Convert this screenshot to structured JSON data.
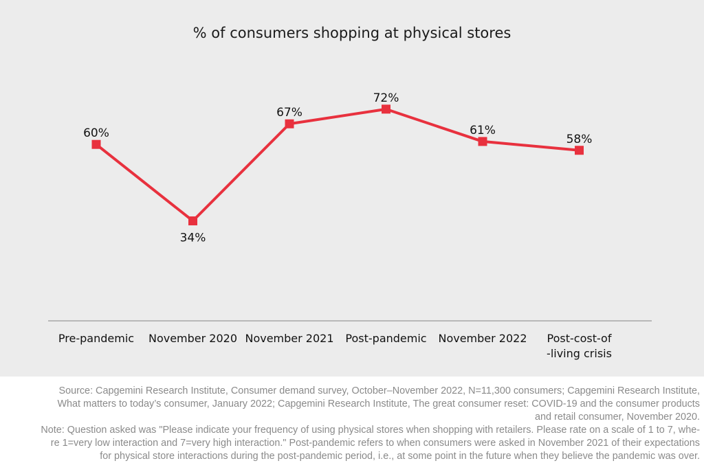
{
  "chart_data": {
    "type": "line",
    "title": "% of consumers shopping at physical stores",
    "categories": [
      "Pre-pandemic",
      "November 2020",
      "November 2021",
      "Post-pandemic",
      "November 2022",
      "Post-cost-of -living crisis"
    ],
    "category_lines": [
      [
        "Pre-pandemic"
      ],
      [
        "November 2020"
      ],
      [
        "November 2021"
      ],
      [
        "Post-pandemic"
      ],
      [
        "November 2022"
      ],
      [
        "Post-cost-of",
        "-living crisis"
      ]
    ],
    "series": [
      {
        "values": [
          60,
          34,
          67,
          72,
          61,
          58
        ],
        "labels": [
          "60%",
          "34%",
          "67%",
          "72%",
          "61%",
          "58%"
        ],
        "color": "#e8313e"
      }
    ],
    "ylim": [
      0,
      80
    ],
    "grid": false,
    "legend": "none",
    "axis_color": "#999999",
    "background": "#ececec"
  },
  "footnote": {
    "source_lines": [
      "Source: Capgemini Research Institute, Consumer demand survey, October–November 2022, N=11,300 consumers; Capgemini Research Institute,",
      "What matters to today’s consumer, January 2022; Capgemini Research Institute, The great consumer reset: COVID-19 and the consumer products",
      "and retail consumer, November 2020."
    ],
    "note_lines": [
      "Note: Question asked was \"Please indicate your frequency of using physical stores when shopping with retailers. Please rate on a scale of 1 to 7, whe-",
      "re 1=very low interaction and 7=very high interaction.\" Post-pandemic refers to when consumers were asked in November 2021 of their expectations",
      "for physical store interactions during the post-pandemic period, i.e., at some point in the future when they believe the pandemic was over."
    ]
  }
}
